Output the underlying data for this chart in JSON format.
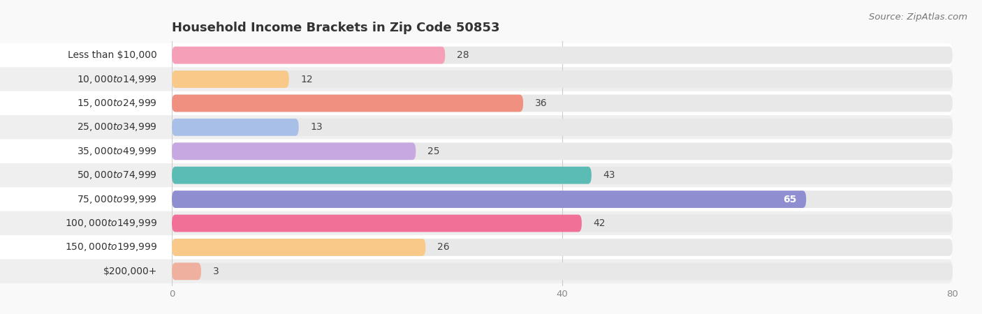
{
  "title": "Household Income Brackets in Zip Code 50853",
  "source": "Source: ZipAtlas.com",
  "categories": [
    "Less than $10,000",
    "$10,000 to $14,999",
    "$15,000 to $24,999",
    "$25,000 to $34,999",
    "$35,000 to $49,999",
    "$50,000 to $74,999",
    "$75,000 to $99,999",
    "$100,000 to $149,999",
    "$150,000 to $199,999",
    "$200,000+"
  ],
  "values": [
    28,
    12,
    36,
    13,
    25,
    43,
    65,
    42,
    26,
    3
  ],
  "bar_colors": [
    "#F5A0B8",
    "#F9C98A",
    "#F09080",
    "#A8C0E8",
    "#C8A8E0",
    "#5BBCB5",
    "#8E8ED0",
    "#F07098",
    "#F9C98A",
    "#F0B0A0"
  ],
  "row_bg_colors": [
    "#ffffff",
    "#efefef"
  ],
  "bar_bg_color": "#e8e8e8",
  "background_color": "#f9f9f9",
  "xlim_max": 80,
  "xticks": [
    0,
    40,
    80
  ],
  "title_fontsize": 13,
  "label_fontsize": 10,
  "value_fontsize": 10,
  "source_fontsize": 9.5
}
